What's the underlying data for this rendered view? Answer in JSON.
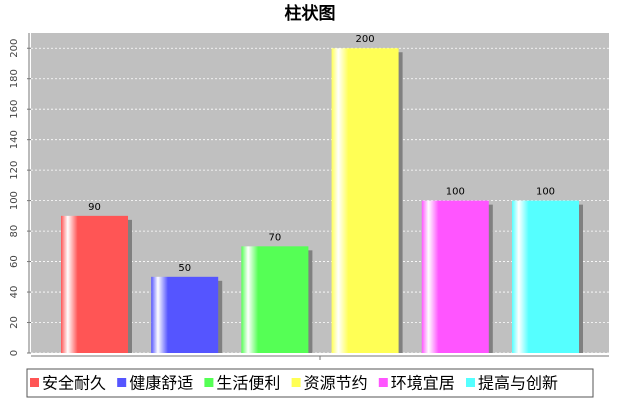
{
  "chart_data": {
    "type": "bar",
    "title": "柱状图",
    "categories": [
      null
    ],
    "series": [
      {
        "name": "安全耐久",
        "color": "#ff5555",
        "values": [
          90
        ]
      },
      {
        "name": "健康舒适",
        "color": "#5555ff",
        "values": [
          50
        ]
      },
      {
        "name": "生活便利",
        "color": "#55ff55",
        "values": [
          70
        ]
      },
      {
        "name": "资源节约",
        "color": "#ffff55",
        "values": [
          200
        ]
      },
      {
        "name": "环境宜居",
        "color": "#ff55ff",
        "values": [
          100
        ]
      },
      {
        "name": "提高与创新",
        "color": "#55ffff",
        "values": [
          100
        ]
      }
    ],
    "ylim": [
      0,
      210
    ],
    "yticks": [
      0,
      20,
      40,
      60,
      80,
      100,
      120,
      140,
      160,
      180,
      200
    ],
    "grid": true
  }
}
